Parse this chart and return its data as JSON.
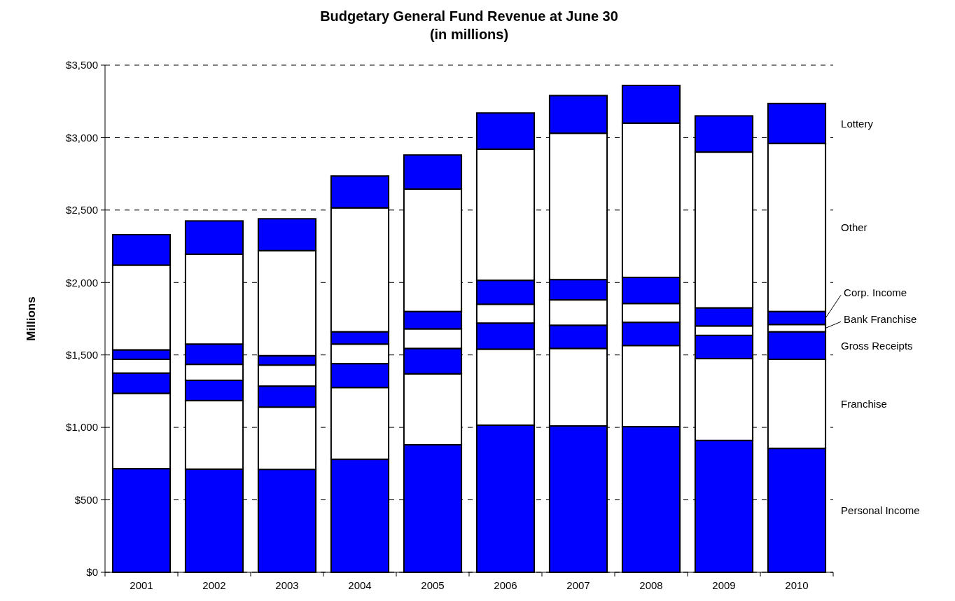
{
  "chart_data": {
    "type": "bar",
    "title": "Budgetary General Fund Revenue at June 30",
    "subtitle": "(in millions)",
    "ylabel": "Millions",
    "stacked": true,
    "grid": "y",
    "legend": "right",
    "categories": [
      "2001",
      "2002",
      "2003",
      "2004",
      "2005",
      "2006",
      "2007",
      "2008",
      "2009",
      "2010"
    ],
    "ylim": [
      0,
      3500
    ],
    "yticks": [
      {
        "value": 0,
        "label": "$0"
      },
      {
        "value": 500,
        "label": "$500"
      },
      {
        "value": 1000,
        "label": "$1,000"
      },
      {
        "value": 1500,
        "label": "$1,500"
      },
      {
        "value": 2000,
        "label": "$2,000"
      },
      {
        "value": 2500,
        "label": "$2,500"
      },
      {
        "value": 3000,
        "label": "$3,000"
      },
      {
        "value": 3500,
        "label": "$3,500"
      }
    ],
    "series": [
      {
        "name": "Personal Income",
        "color": "#0000ff",
        "values": [
          715,
          712,
          710,
          780,
          880,
          1015,
          1010,
          1005,
          910,
          855
        ]
      },
      {
        "name": "Franchise",
        "color": "#ffffff",
        "values": [
          520,
          473,
          430,
          495,
          490,
          525,
          535,
          560,
          565,
          615
        ]
      },
      {
        "name": "Gross Receipts",
        "color": "#0000ff",
        "values": [
          140,
          140,
          145,
          165,
          175,
          180,
          160,
          160,
          160,
          190
        ]
      },
      {
        "name": "Bank Franchise",
        "color": "#ffffff",
        "values": [
          95,
          110,
          145,
          135,
          135,
          130,
          175,
          130,
          65,
          50
        ]
      },
      {
        "name": "Corp. Income",
        "color": "#0000ff",
        "values": [
          65,
          140,
          65,
          85,
          120,
          165,
          140,
          180,
          125,
          90
        ]
      },
      {
        "name": "Other",
        "color": "#ffffff",
        "values": [
          585,
          620,
          725,
          855,
          845,
          905,
          1010,
          1065,
          1075,
          1160
        ]
      },
      {
        "name": "Lottery",
        "color": "#0000ff",
        "values": [
          210,
          230,
          220,
          220,
          235,
          250,
          260,
          260,
          250,
          275
        ]
      }
    ]
  }
}
